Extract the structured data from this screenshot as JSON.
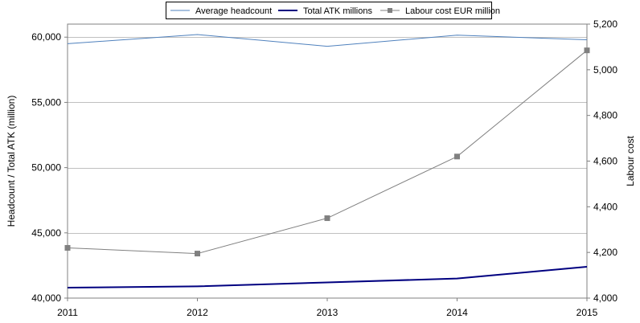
{
  "chart_data": {
    "type": "line",
    "x": [
      "2011",
      "2012",
      "2013",
      "2014",
      "2015"
    ],
    "series": [
      {
        "name": "Average headcount",
        "axis": "left",
        "color": "#4f81bd",
        "values": [
          59500,
          60200,
          59300,
          60150,
          59800
        ]
      },
      {
        "name": "Total ATK millions",
        "axis": "left",
        "color": "#000080",
        "values": [
          40800,
          40900,
          41200,
          41500,
          42400
        ]
      },
      {
        "name": "Labour cost EUR million",
        "axis": "right",
        "color": "#808080",
        "marker": "square",
        "values": [
          4220,
          4195,
          4350,
          4620,
          5085
        ]
      }
    ],
    "y_left": {
      "label": "Headcount / Total ATK (million)",
      "range": [
        40000,
        61000
      ],
      "ticks": [
        "40,000",
        "45,000",
        "50,000",
        "55,000",
        "60,000"
      ],
      "tick_values": [
        40000,
        45000,
        50000,
        55000,
        60000
      ]
    },
    "y_right": {
      "label": "Labour cost",
      "range": [
        4000,
        5200
      ],
      "ticks": [
        "4,000",
        "4,200",
        "4,400",
        "4,600",
        "4,800",
        "5,000",
        "5,200"
      ],
      "tick_values": [
        4000,
        4200,
        4400,
        4600,
        4800,
        5000,
        5200
      ]
    },
    "grid": true,
    "legend": "top-center"
  }
}
